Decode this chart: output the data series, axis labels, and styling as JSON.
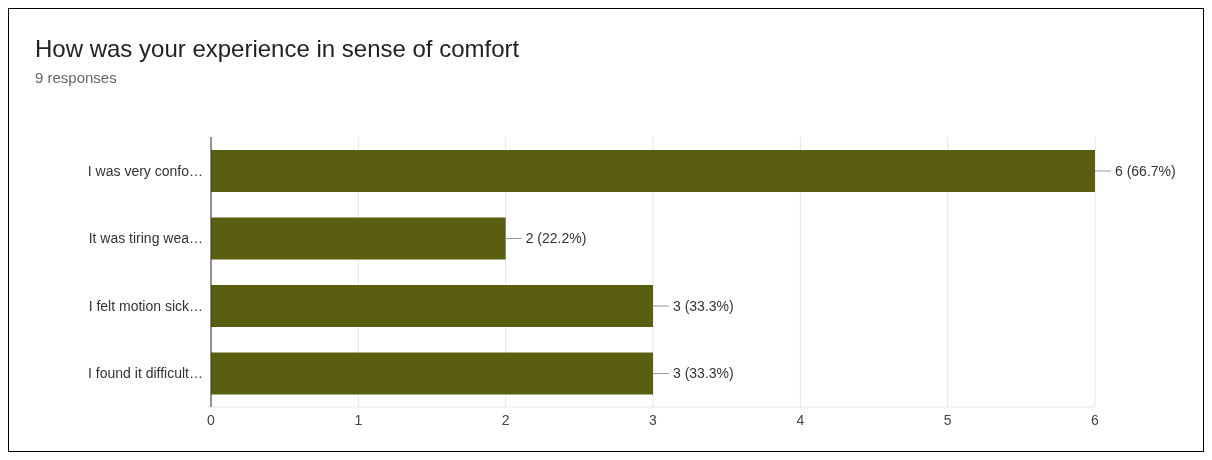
{
  "chart_data": {
    "type": "bar",
    "orientation": "horizontal",
    "title": "How was your experience in sense of comfort",
    "subtitle": "9 responses",
    "categories": [
      "I was very confo…",
      "It was tiring wea…",
      "I felt motion sick…",
      "I found it difficult…"
    ],
    "values": [
      6,
      2,
      3,
      3
    ],
    "color": "#5a5e10",
    "value_labels": [
      "6 (66.7%)",
      "2 (22.2%)",
      "3 (33.3%)",
      "3 (33.3%)"
    ],
    "xlim": [
      0,
      6
    ],
    "xticks": [
      0,
      1,
      2,
      3,
      4,
      5,
      6
    ],
    "grid": "x"
  }
}
